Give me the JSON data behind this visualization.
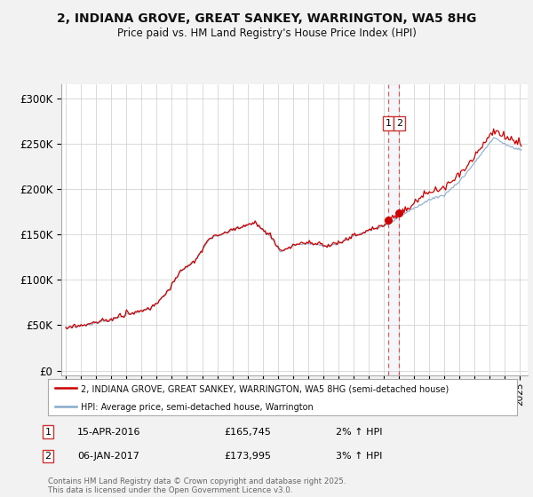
{
  "title_line1": "2, INDIANA GROVE, GREAT SANKEY, WARRINGTON, WA5 8HG",
  "title_line2": "Price paid vs. HM Land Registry's House Price Index (HPI)",
  "ylabel_ticks": [
    "£0",
    "£50K",
    "£100K",
    "£150K",
    "£200K",
    "£250K",
    "£300K"
  ],
  "ytick_values": [
    0,
    50000,
    100000,
    150000,
    200000,
    250000,
    300000
  ],
  "ylim": [
    -5000,
    315000
  ],
  "xlim_start": 1994.7,
  "xlim_end": 2025.5,
  "line1_color": "#cc0000",
  "line2_color": "#88aacc",
  "line1_label": "2, INDIANA GROVE, GREAT SANKEY, WARRINGTON, WA5 8HG (semi-detached house)",
  "line2_label": "HPI: Average price, semi-detached house, Warrington",
  "marker1_date": 2016.29,
  "marker2_date": 2017.02,
  "marker1_value": 165745,
  "marker2_value": 173995,
  "annotation1": [
    "1",
    "15-APR-2016",
    "£165,745",
    "2% ↑ HPI"
  ],
  "annotation2": [
    "2",
    "06-JAN-2017",
    "£173,995",
    "3% ↑ HPI"
  ],
  "footer": "Contains HM Land Registry data © Crown copyright and database right 2025.\nThis data is licensed under the Open Government Licence v3.0.",
  "background_color": "#f2f2f2",
  "plot_bg_color": "#ffffff",
  "grid_color": "#cccccc"
}
